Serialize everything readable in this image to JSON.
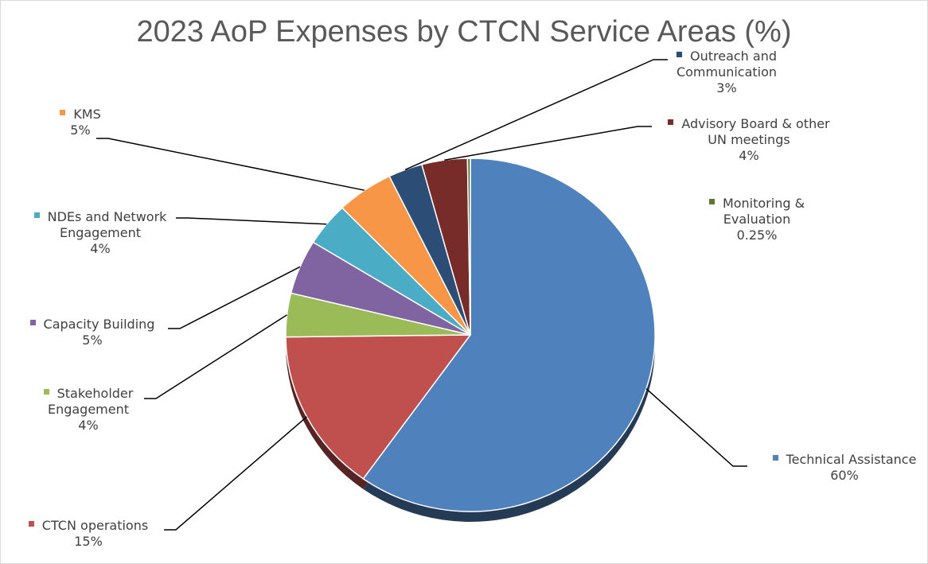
{
  "chart_data": {
    "type": "pie",
    "title": "2023 AoP Expenses by CTCN Service Areas (%)",
    "categories": [
      "Technical Assistance",
      "CTCN operations",
      "Stakeholder Engagement",
      "Capacity Building",
      "NDEs and Network Engagement",
      "KMS",
      "Outreach and Communication",
      "Advisory Board & other UN meetings",
      "Monitoring & Evaluation"
    ],
    "values": [
      60,
      15,
      4,
      5,
      4,
      5,
      3,
      4,
      0.25
    ],
    "value_labels": [
      "60%",
      "15%",
      "4%",
      "5%",
      "4%",
      "5%",
      "3%",
      "4%",
      "0.25%"
    ],
    "colors": [
      "#4f81bd",
      "#c0504d",
      "#9bbb59",
      "#8064a2",
      "#4bacc6",
      "#f79646",
      "#2c4d75",
      "#772c2a",
      "#5f7530"
    ]
  }
}
